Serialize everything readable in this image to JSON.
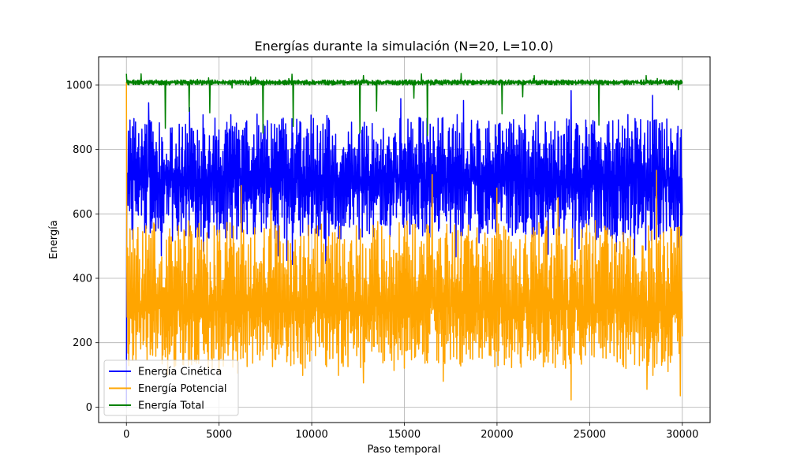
{
  "chart_data": {
    "type": "line",
    "title": "Energías durante la simulación (N=20, L=10.0)",
    "xlabel": "Paso temporal",
    "ylabel": "Energía",
    "xlim": [
      -1500,
      31500
    ],
    "ylim": [
      -48,
      1088
    ],
    "xticks": [
      0,
      5000,
      10000,
      15000,
      20000,
      25000,
      30000
    ],
    "yticks": [
      0,
      200,
      400,
      600,
      800,
      1000
    ],
    "xtick_labels": [
      "0",
      "5000",
      "10000",
      "15000",
      "20000",
      "25000",
      "30000"
    ],
    "ytick_labels": [
      "0",
      "200",
      "400",
      "600",
      "800",
      "1000"
    ],
    "grid": true,
    "legend_position": "bottom-left",
    "x_range": [
      0,
      30000
    ],
    "series": [
      {
        "name": "Energía Cinética",
        "color": "#0000ff",
        "start_value": 0,
        "mean": 705,
        "band": [
          520,
          890
        ],
        "peak_values": [
          [
            1200,
            945
          ],
          [
            3400,
            930
          ],
          [
            14800,
            958
          ],
          [
            18200,
            952
          ],
          [
            24000,
            983
          ],
          [
            28400,
            968
          ]
        ]
      },
      {
        "name": "Energía Potencial",
        "color": "#ffa500",
        "start_value": 1010,
        "mean": 305,
        "band": [
          120,
          560
        ],
        "peak_values": [
          [
            6200,
            688
          ],
          [
            7800,
            680
          ],
          [
            16500,
            722
          ],
          [
            20000,
            680
          ],
          [
            23300,
            650
          ],
          [
            28600,
            735
          ]
        ],
        "low_values": [
          [
            12800,
            75
          ],
          [
            17100,
            80
          ],
          [
            24000,
            22
          ],
          [
            28100,
            55
          ],
          [
            29900,
            35
          ]
        ]
      },
      {
        "name": "Energía Total",
        "color": "#008000",
        "start_value": 1035,
        "mean": 1008,
        "band": [
          1000,
          1016
        ],
        "peak_values": [
          [
            12800,
            1030
          ],
          [
            22000,
            1030
          ]
        ]
      }
    ]
  }
}
